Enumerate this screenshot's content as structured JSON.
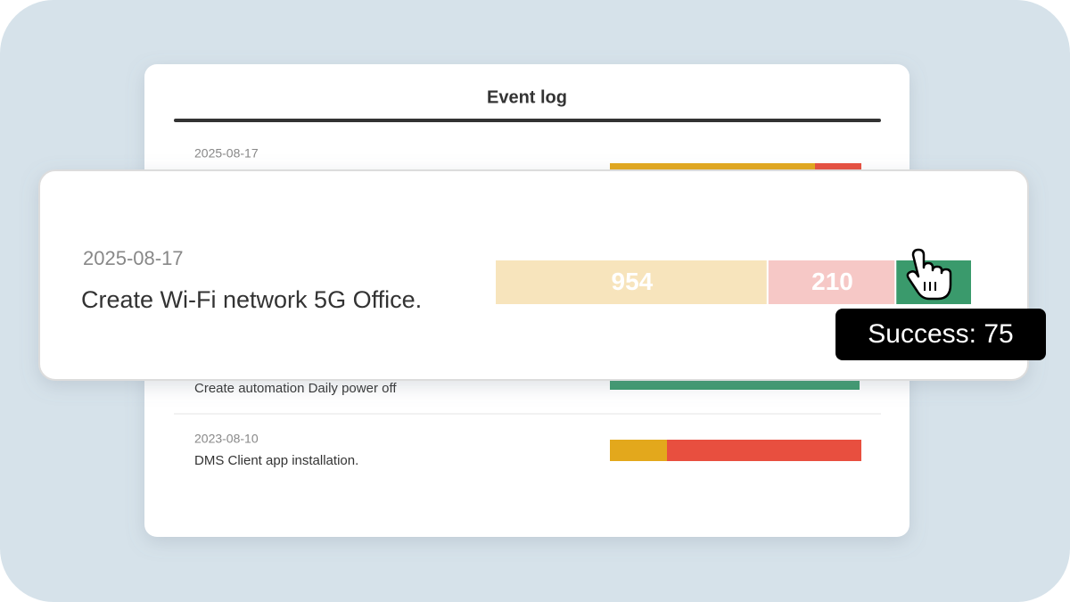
{
  "title": "Event log",
  "rows": [
    {
      "date": "2025-08-17"
    },
    {
      "description": "Create automation Daily power off"
    },
    {
      "date": "2023-08-10",
      "description": "DMS Client app installation."
    }
  ],
  "popup": {
    "date": "2025-08-17",
    "description": "Create Wi-Fi network 5G Office.",
    "segments": [
      {
        "value": 954,
        "color": "#f7e4bc"
      },
      {
        "value": 210,
        "color": "#f6c8c6"
      },
      {
        "value": 75,
        "color": "#3a9a6c"
      }
    ],
    "tooltip": "Success: 75"
  }
}
